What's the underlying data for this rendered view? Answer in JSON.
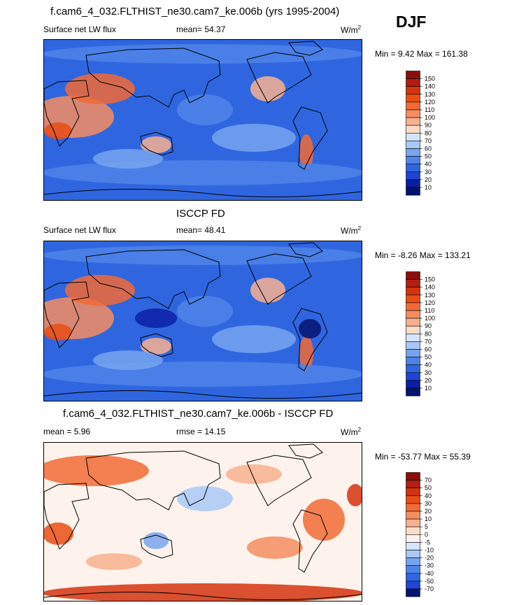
{
  "season": "DJF",
  "panels": [
    {
      "title": "f.cam6_4_032.FLTHIST_ne30.cam7_ke.006b (yrs 1995-2004)",
      "left_label": "Surface net LW flux",
      "stat_label": "mean=  54.37",
      "units": "W/m",
      "units_sup": "2",
      "minmax": "Min =   9.42 Max = 161.38",
      "colorbar_labels": [
        "150",
        "140",
        "130",
        "120",
        "110",
        "100",
        "90",
        "80",
        "70",
        "60",
        "50",
        "40",
        "30",
        "20",
        "10"
      ],
      "colors": [
        "#8b0d0d",
        "#b31d12",
        "#d4330f",
        "#e94e14",
        "#f26a36",
        "#f58d60",
        "#f8b08f",
        "#fbdcc9",
        "#d5e5fb",
        "#a9c8f6",
        "#77a4ee",
        "#4e84e8",
        "#2f66e0",
        "#1f44d6",
        "#0a1fa3",
        "#03136e"
      ]
    },
    {
      "title": "ISCCP FD",
      "left_label": "Surface net LW flux",
      "stat_label": "mean=  48.41",
      "units": "W/m",
      "units_sup": "2",
      "minmax": "Min =  -8.26 Max = 133.21",
      "colorbar_labels": [
        "150",
        "140",
        "130",
        "120",
        "110",
        "100",
        "90",
        "80",
        "70",
        "60",
        "50",
        "40",
        "30",
        "20",
        "10"
      ],
      "colors": [
        "#8b0d0d",
        "#b31d12",
        "#d4330f",
        "#e94e14",
        "#f26a36",
        "#f58d60",
        "#f8b08f",
        "#fbdcc9",
        "#d5e5fb",
        "#a9c8f6",
        "#77a4ee",
        "#4e84e8",
        "#2f66e0",
        "#1f44d6",
        "#0a1fa3",
        "#03136e"
      ]
    },
    {
      "title": "f.cam6_4_032.FLTHIST_ne30.cam7_ke.006b - ISCCP FD",
      "left_label": "mean =   5.96",
      "stat_label": "rmse =  14.15",
      "units": "W/m",
      "units_sup": "2",
      "minmax": "Min = -53.77 Max =  55.39",
      "colorbar_labels": [
        "70",
        "50",
        "40",
        "30",
        "20",
        "10",
        "5",
        "0",
        "-5",
        "-10",
        "-20",
        "-30",
        "-40",
        "-50",
        "-70"
      ],
      "colors": [
        "#8b0d0d",
        "#b31d12",
        "#d4330f",
        "#e94e14",
        "#f26a36",
        "#f58d60",
        "#f8b08f",
        "#fbdcc9",
        "#fdf3ec",
        "#d5e5fb",
        "#a9c8f6",
        "#77a4ee",
        "#4e84e8",
        "#2f66e0",
        "#1f44d6",
        "#03136e"
      ]
    }
  ],
  "chart_data": [
    {
      "type": "heatmap",
      "title": "f.cam6_4_032.FLTHIST_ne30.cam7_ke.006b (yrs 1995-2004)",
      "variable": "Surface net LW flux",
      "units": "W/m2",
      "mean": 54.37,
      "min": 9.42,
      "max": 161.38,
      "levels": [
        10,
        20,
        30,
        40,
        50,
        60,
        70,
        80,
        90,
        100,
        110,
        120,
        130,
        140,
        150
      ]
    },
    {
      "type": "heatmap",
      "title": "ISCCP FD",
      "variable": "Surface net LW flux",
      "units": "W/m2",
      "mean": 48.41,
      "min": -8.26,
      "max": 133.21,
      "levels": [
        10,
        20,
        30,
        40,
        50,
        60,
        70,
        80,
        90,
        100,
        110,
        120,
        130,
        140,
        150
      ]
    },
    {
      "type": "heatmap",
      "title": "f.cam6_4_032.FLTHIST_ne30.cam7_ke.006b - ISCCP FD",
      "units": "W/m2",
      "mean": 5.96,
      "rmse": 14.15,
      "min": -53.77,
      "max": 55.39,
      "levels": [
        -70,
        -50,
        -40,
        -30,
        -20,
        -10,
        -5,
        0,
        5,
        10,
        20,
        30,
        40,
        50,
        70
      ]
    }
  ]
}
